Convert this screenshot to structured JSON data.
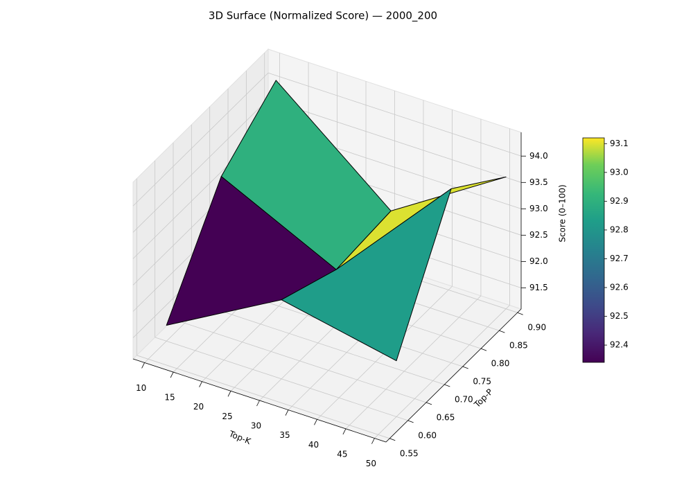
{
  "chart_data": {
    "type": "surface3d",
    "title": "3D Surface (Normalized Score) — 2000_200",
    "x_label": "Top-K",
    "y_label": "Top-P",
    "z_label": "Score (0–100)",
    "x": [
      10,
      30,
      50
    ],
    "y": [
      0.6,
      0.75,
      0.9
    ],
    "z": [
      [
        91.4,
        92.6,
        92.16
      ],
      [
        93.2,
        92.15,
        94.4
      ],
      [
        94.0,
        92.24,
        93.6
      ]
    ],
    "xlim": [
      8,
      52
    ],
    "ylim": [
      0.54,
      0.91
    ],
    "zlim": [
      91.1,
      94.45
    ],
    "xticks": [
      10,
      15,
      20,
      25,
      30,
      35,
      40,
      45,
      50
    ],
    "yticks": [
      0.55,
      {
        "value": 0.6,
        "label": "0.60"
      },
      0.65,
      {
        "value": 0.7,
        "label": "0.70"
      },
      0.75,
      {
        "value": 0.8,
        "label": "0.80"
      },
      0.85,
      {
        "value": 0.9,
        "label": "0.90"
      }
    ],
    "zticks": [
      91.5,
      {
        "value": 92.0,
        "label": "92.0"
      },
      92.5,
      {
        "value": 93.0,
        "label": "93.0"
      },
      93.5,
      {
        "value": 94.0,
        "label": "94.0"
      }
    ],
    "colormap": "viridis",
    "edge_color": "#000000",
    "clim": [
      92.34,
      93.12
    ],
    "cticks": [
      92.4,
      92.5,
      92.6,
      92.7,
      92.8,
      92.9,
      {
        "value": 93.0,
        "label": "93.0"
      },
      93.1
    ],
    "grid": true
  }
}
